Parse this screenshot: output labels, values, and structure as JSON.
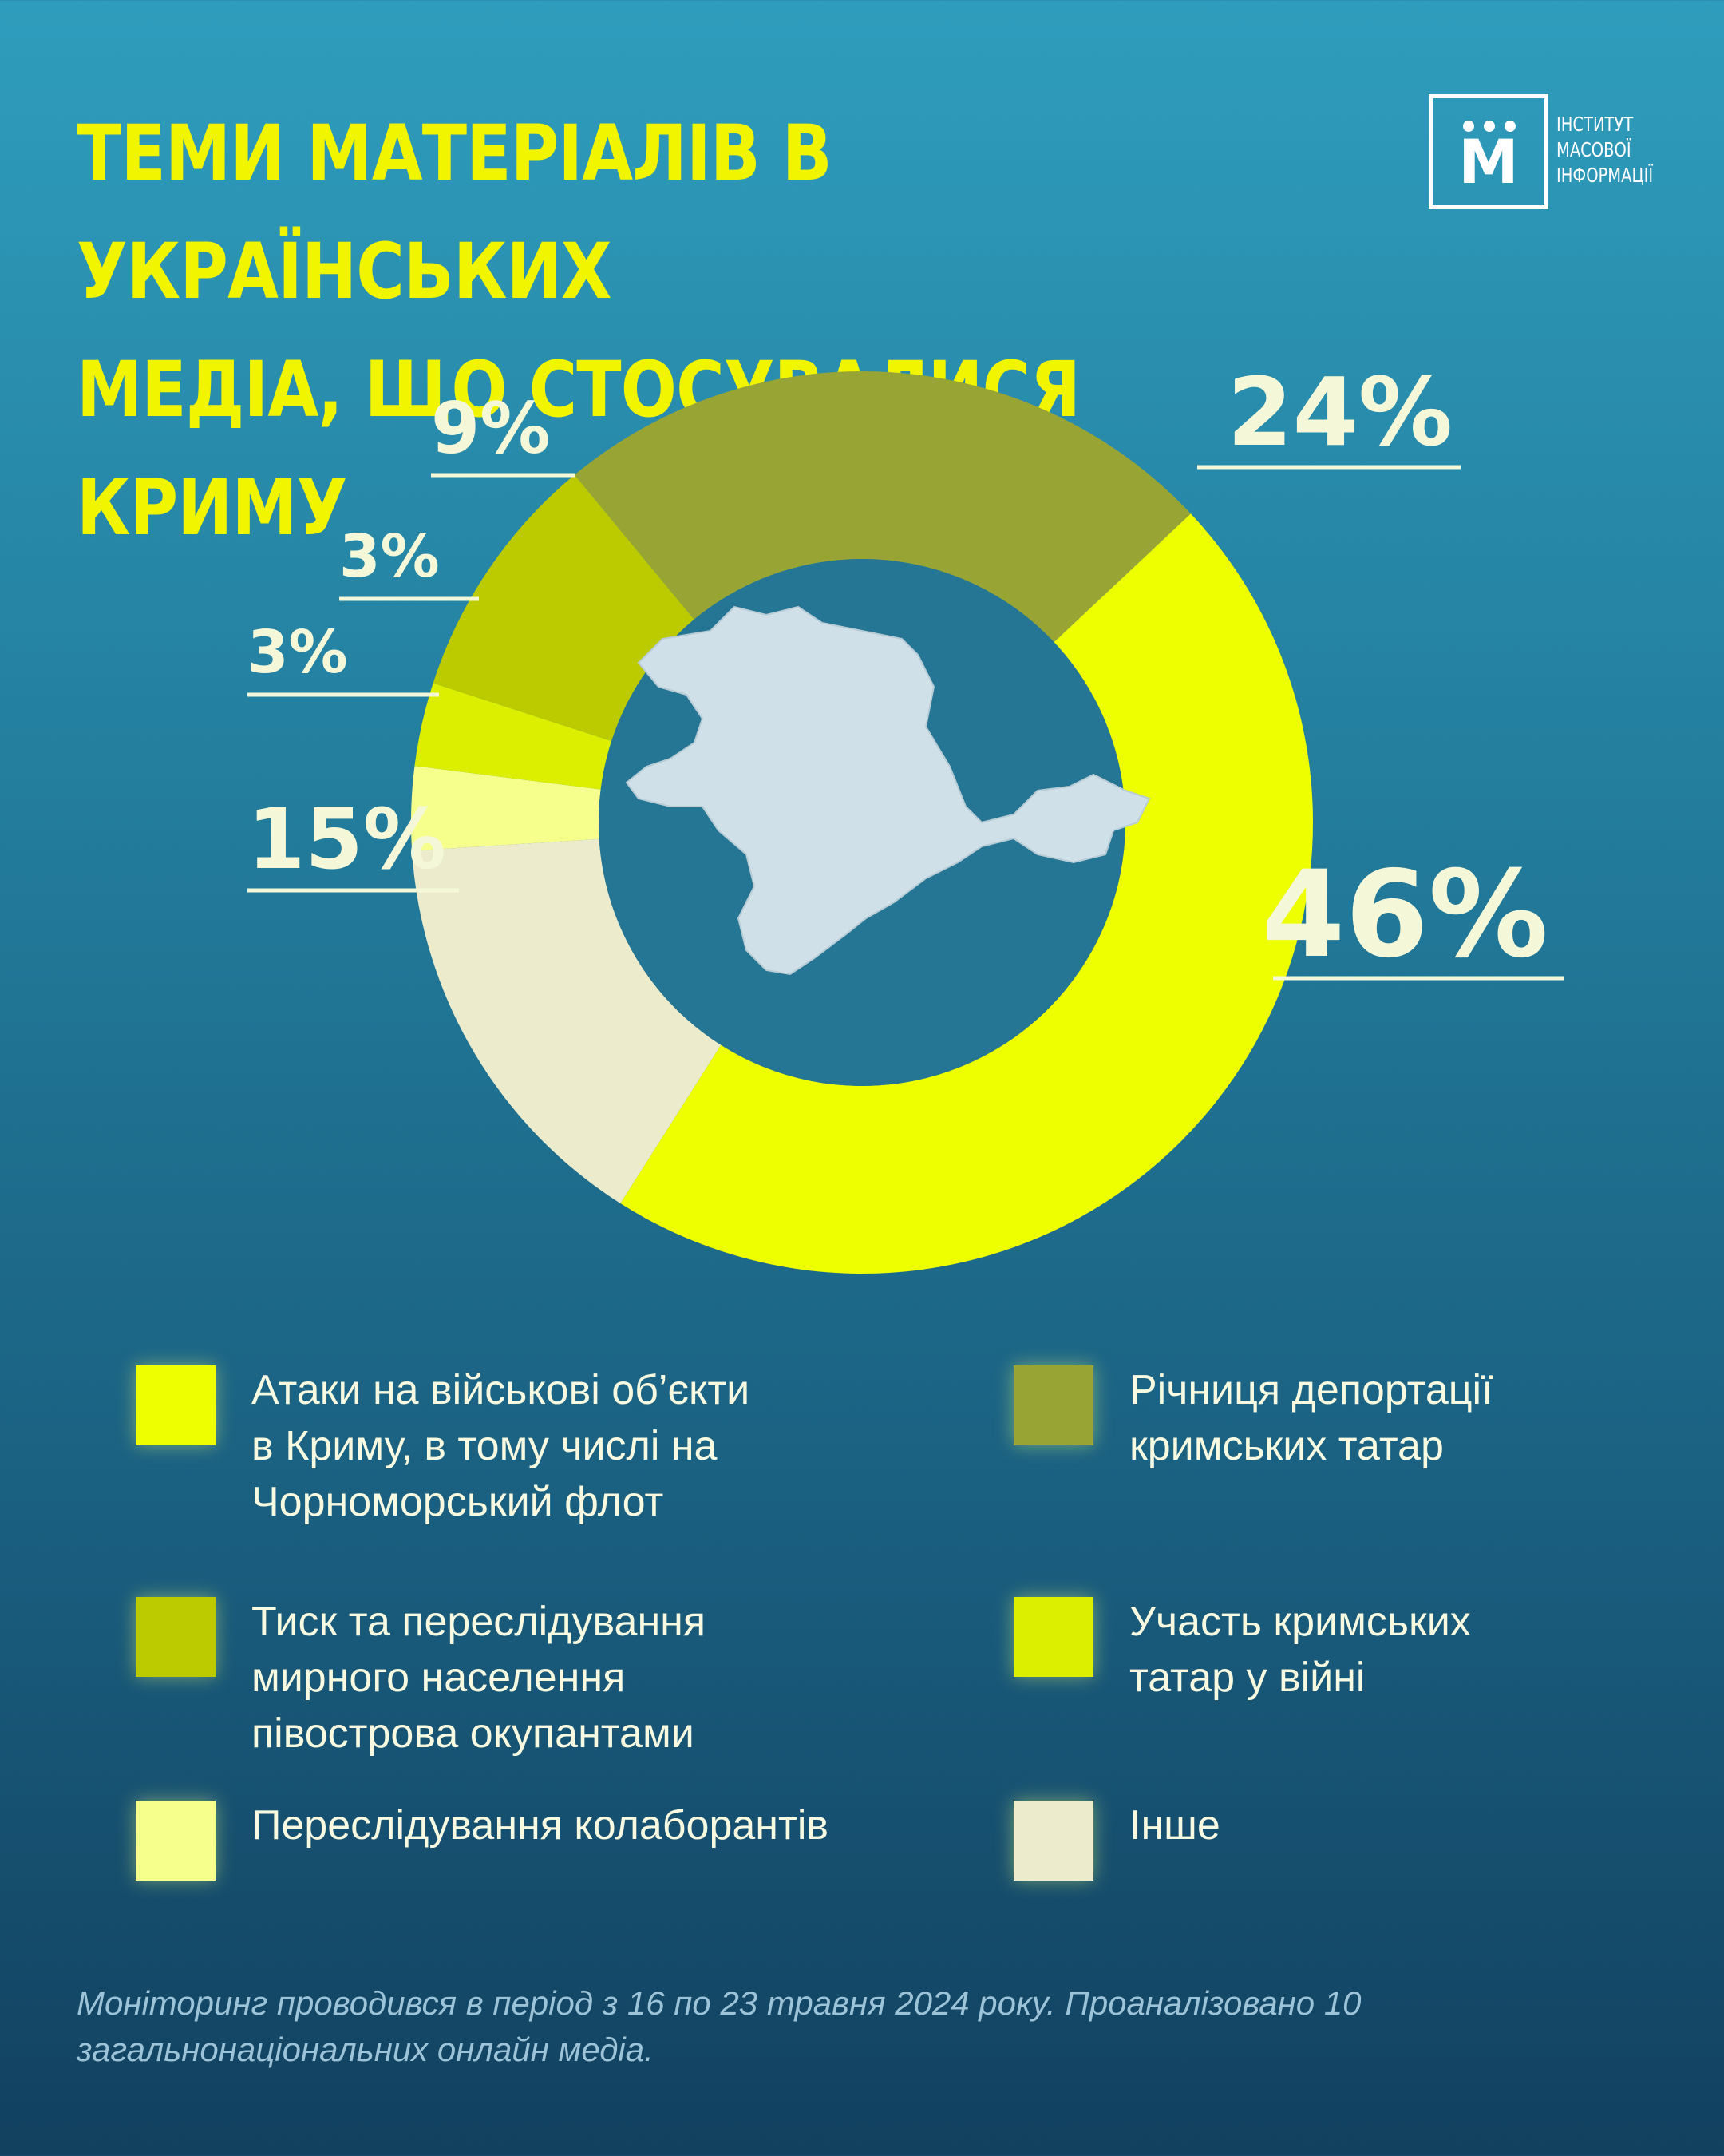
{
  "title": "ТЕМИ МАТЕРІАЛІВ В УКРАЇНСЬКИХ\nМЕДІА, ЩО СТОСУВАЛИСЯ КРИМУ",
  "logo": {
    "letter": "М",
    "text": "ІНСТИТУТ\nМАСОВОЇ\nІНФОРМАЦІЇ"
  },
  "chart_data": {
    "type": "donut",
    "title": "ТЕМИ МАТЕРІАЛІВ В УКРАЇНСЬКИХ МЕДІА, ЩО СТОСУВАЛИСЯ КРИМУ",
    "unit": "%",
    "categories": [
      "Атаки на військові об’єкти в Криму, в тому числі на Чорноморський флот",
      "Інше",
      "Переслідування колаборантів",
      "Участь кримських татар у війні",
      "Тиск та переслідування мирного населення півострова окупантами",
      "Річниця депортації кримських татар"
    ],
    "values": [
      46,
      15,
      3,
      3,
      9,
      24
    ],
    "labels": [
      "46%",
      "15%",
      "3%",
      "3%",
      "9%",
      "24%"
    ],
    "colors": [
      "#eeff00",
      "#ecebcc",
      "#f6ff8c",
      "#dcef00",
      "#bccb00",
      "#98a535"
    ],
    "center_image": "crimea-map",
    "legend_position": "bottom"
  },
  "legend": [
    {
      "label": "Атаки на військові об’єкти\nв Криму, в тому числі на\nЧорноморський флот",
      "color": "#eeff00"
    },
    {
      "label": "Річниця депортації\nкримських татар",
      "color": "#98a535"
    },
    {
      "label": "Тиск та переслідування\nмирного населення\nпівострова окупантами",
      "color": "#bccb00"
    },
    {
      "label": "Участь кримських\nтатар у війні",
      "color": "#dcef00"
    },
    {
      "label": "Переслідування колаборантів",
      "color": "#f6ff8c"
    },
    {
      "label": "Інше",
      "color": "#ecebcc"
    }
  ],
  "footnote": "Моніторинг проводився в період з 16 по 23 травня 2024 року. Проаналізовано 10 загальнонаціональних онлайн медіа."
}
